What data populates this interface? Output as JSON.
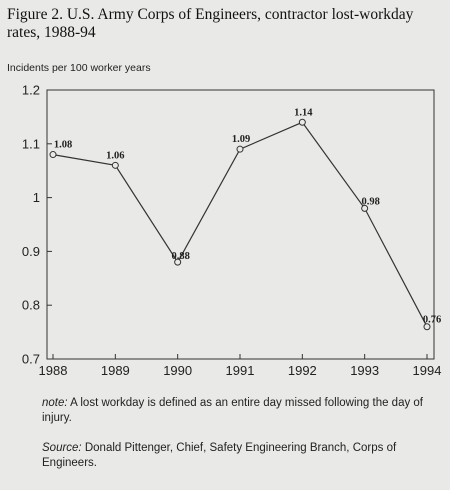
{
  "title": "Figure 2. U.S. Army Corps of Engineers, contractor lost-workday rates, 1988-94",
  "chart_data": {
    "type": "line",
    "ylabel": "Incidents per 100 worker years",
    "xlabel": "",
    "x": [
      "1988",
      "1989",
      "1990",
      "1991",
      "1992",
      "1993",
      "1994"
    ],
    "series": [
      {
        "values": [
          1.08,
          1.06,
          0.88,
          1.09,
          1.14,
          0.98,
          0.76
        ]
      }
    ],
    "data_labels": [
      "1.08",
      "1.06",
      "0.88",
      "1.09",
      "1.14",
      "0.98",
      "0.76"
    ],
    "ylim": [
      0.7,
      1.2
    ],
    "yticks": [
      0.7,
      0.8,
      0.9,
      1.0,
      1.1,
      1.2
    ],
    "ytick_labels": [
      "0.7",
      "0.8",
      "0.9",
      "1",
      "1.1",
      "1.2"
    ],
    "grid": false,
    "legend": "none",
    "line_color": "#333333",
    "marker": "open-circle"
  },
  "note": {
    "prefix": "note:",
    "text": "A lost workday is defined as an entire day missed following the day of injury."
  },
  "source": {
    "prefix": "Source:",
    "text": "Donald Pittenger, Chief, Safety Engineering Branch, Corps of Engineers."
  }
}
